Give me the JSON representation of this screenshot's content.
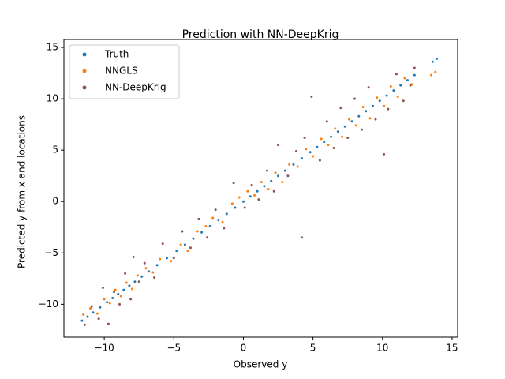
{
  "chart_data": {
    "type": "scatter",
    "title": "Prediction with NN-DeepKrig",
    "x_label": "Observed y",
    "y_label": "Predicted y from x and locations",
    "xlim": [
      -12.9,
      15.4
    ],
    "ylim": [
      -13.2,
      15.77
    ],
    "xticks": [
      {
        "value": -10,
        "label": "−10"
      },
      {
        "value": -5,
        "label": "−5"
      },
      0,
      5,
      10,
      15
    ],
    "yticks": [
      {
        "value": -10,
        "label": "−10"
      },
      {
        "value": -5,
        "label": "−5"
      },
      0,
      5,
      10,
      15
    ],
    "grid": false,
    "legend": "upper left",
    "series": [
      {
        "name": "Truth",
        "color": "#1f77b4",
        "x": [
          -11.6,
          -11.2,
          -10.8,
          -10.3,
          -9.8,
          -9.4,
          -9.0,
          -8.6,
          -8.2,
          -7.8,
          -7.3,
          -6.8,
          -6.2,
          -5.5,
          -4.8,
          -4.2,
          -3.6,
          -3.0,
          -2.4,
          -1.8,
          -1.2,
          -0.6,
          0.0,
          0.5,
          1.0,
          1.5,
          2.0,
          2.5,
          3.0,
          3.6,
          4.2,
          4.8,
          5.3,
          5.8,
          6.3,
          6.8,
          7.3,
          7.8,
          8.3,
          8.8,
          9.3,
          9.8,
          10.3,
          10.8,
          11.3,
          11.8,
          12.3,
          13.6,
          13.9
        ],
        "values": [
          -11.6,
          -11.2,
          -10.8,
          -10.3,
          -9.8,
          -9.4,
          -9.0,
          -8.6,
          -8.2,
          -7.8,
          -7.3,
          -6.8,
          -6.2,
          -5.5,
          -4.8,
          -4.2,
          -3.6,
          -3.0,
          -2.4,
          -1.8,
          -1.2,
          -0.6,
          0.0,
          0.5,
          1.0,
          1.5,
          2.0,
          2.5,
          3.0,
          3.6,
          4.2,
          4.8,
          5.3,
          5.8,
          6.3,
          6.8,
          7.3,
          7.8,
          8.3,
          8.8,
          9.3,
          9.8,
          10.3,
          10.8,
          11.3,
          11.8,
          12.3,
          13.6,
          13.9
        ]
      },
      {
        "name": "NNGLS",
        "color": "#ff7f0e",
        "x": [
          -11.5,
          -11.0,
          -10.5,
          -10.0,
          -9.6,
          -9.2,
          -8.8,
          -8.4,
          -8.0,
          -7.6,
          -7.0,
          -6.5,
          -6.0,
          -5.2,
          -4.5,
          -4.0,
          -3.3,
          -2.7,
          -2.2,
          -1.5,
          -0.8,
          -0.3,
          0.3,
          0.8,
          1.3,
          1.8,
          2.3,
          2.8,
          3.3,
          3.9,
          4.5,
          5.0,
          5.6,
          6.1,
          6.6,
          7.1,
          7.6,
          8.1,
          8.6,
          9.1,
          9.6,
          10.1,
          10.6,
          11.1,
          11.6,
          12.1,
          13.5,
          13.8
        ],
        "values": [
          -11.0,
          -10.4,
          -10.9,
          -9.5,
          -9.9,
          -8.6,
          -9.2,
          -7.9,
          -8.5,
          -7.2,
          -6.5,
          -6.9,
          -5.6,
          -5.8,
          -4.2,
          -4.8,
          -2.9,
          -2.4,
          -1.6,
          -2.0,
          -0.2,
          0.4,
          1.0,
          0.6,
          1.9,
          1.2,
          2.8,
          1.9,
          3.6,
          3.4,
          5.1,
          4.4,
          6.1,
          5.5,
          7.1,
          6.3,
          8.0,
          7.4,
          9.2,
          8.1,
          10.1,
          9.3,
          11.2,
          10.2,
          12.0,
          11.4,
          12.3,
          12.6
        ]
      },
      {
        "name": "NN-DeepKrig",
        "color": "#8c564b",
        "x": [
          -11.4,
          -10.9,
          -10.4,
          -10.1,
          -9.7,
          -9.3,
          -8.9,
          -8.5,
          -8.1,
          -7.9,
          -7.5,
          -7.1,
          -6.4,
          -5.8,
          -5.0,
          -4.4,
          -3.8,
          -3.2,
          -2.6,
          -2.0,
          -1.4,
          -0.7,
          0.1,
          0.6,
          1.1,
          1.7,
          2.2,
          2.5,
          3.2,
          3.8,
          4.2,
          4.4,
          4.9,
          5.5,
          6.0,
          6.5,
          7.0,
          7.5,
          8.0,
          8.5,
          9.0,
          9.5,
          10.1,
          10.4,
          11.0,
          11.5,
          12.0,
          12.3
        ],
        "values": [
          -12.0,
          -10.2,
          -11.4,
          -8.4,
          -11.9,
          -8.8,
          -10.0,
          -7.0,
          -9.5,
          -5.4,
          -7.8,
          -6.0,
          -7.4,
          -4.1,
          -5.5,
          -2.9,
          -4.5,
          -1.7,
          -3.5,
          -0.8,
          -2.6,
          1.8,
          -0.6,
          1.6,
          0.2,
          3.0,
          1.0,
          5.5,
          2.5,
          4.9,
          -3.5,
          6.2,
          10.2,
          4.0,
          7.8,
          5.2,
          9.1,
          6.2,
          10.0,
          7.0,
          11.1,
          8.0,
          4.6,
          9.0,
          12.4,
          9.8,
          11.3,
          13.0
        ]
      }
    ]
  }
}
